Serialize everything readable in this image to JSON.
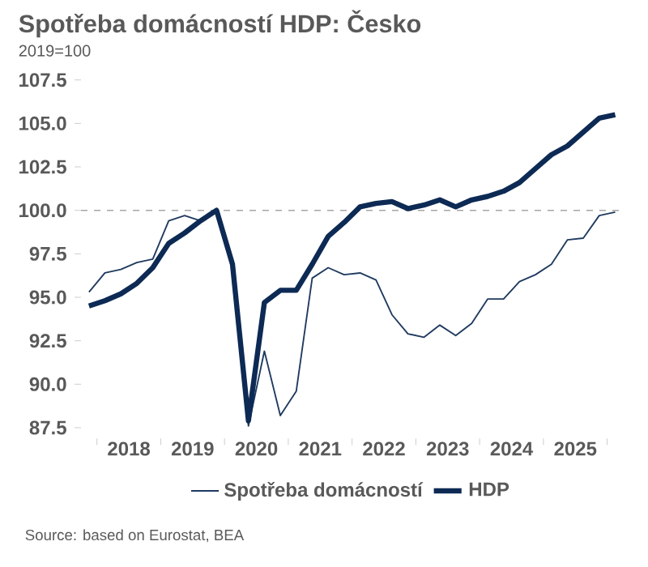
{
  "chart_data": {
    "type": "line",
    "title": "Spotřeba domácností HDP: Česko",
    "subtitle": "2019=100",
    "annotations": [
      "Source: based on Eurostat, BEA"
    ],
    "x": [
      2017.875,
      2018.125,
      2018.375,
      2018.625,
      2018.875,
      2019.125,
      2019.375,
      2019.625,
      2019.875,
      2020.125,
      2020.375,
      2020.625,
      2020.875,
      2021.125,
      2021.375,
      2021.625,
      2021.875,
      2022.125,
      2022.375,
      2022.625,
      2022.875,
      2023.125,
      2023.375,
      2023.625,
      2023.875,
      2024.125,
      2024.375,
      2024.625,
      2024.875,
      2025.125,
      2025.375,
      2025.625,
      2025.875,
      2026.125
    ],
    "series": [
      {
        "name": "Spotřeba domácností",
        "color": "#1f3a5f",
        "values": [
          95.3,
          96.4,
          96.6,
          97.0,
          97.2,
          99.4,
          99.7,
          99.4,
          100.0,
          97.0,
          87.6,
          91.9,
          88.2,
          89.6,
          96.1,
          96.7,
          96.3,
          96.4,
          96.0,
          94.0,
          92.9,
          92.7,
          93.4,
          92.8,
          93.5,
          94.9,
          94.9,
          95.9,
          96.3,
          96.9,
          98.3,
          98.4,
          99.7,
          99.9
        ]
      },
      {
        "name": "HDP",
        "color": "#0d2a54",
        "values": [
          94.5,
          94.8,
          95.2,
          95.8,
          96.7,
          98.1,
          98.7,
          99.4,
          100.0,
          96.9,
          87.9,
          94.7,
          95.4,
          95.4,
          96.9,
          98.5,
          99.3,
          100.2,
          100.4,
          100.5,
          100.1,
          100.3,
          100.6,
          100.2,
          100.6,
          100.8,
          101.1,
          101.6,
          102.4,
          103.2,
          103.7,
          104.5,
          105.3,
          105.5
        ]
      }
    ],
    "xlim": [
      2017.75,
      2026.25
    ],
    "xticks": [
      {
        "value": 2018,
        "label": null
      },
      {
        "value": 2018.5,
        "label": "2018"
      },
      {
        "value": 2019,
        "label": null
      },
      {
        "value": 2019.5,
        "label": "2019"
      },
      {
        "value": 2020,
        "label": null
      },
      {
        "value": 2020.5,
        "label": "2020"
      },
      {
        "value": 2021,
        "label": null
      },
      {
        "value": 2021.5,
        "label": "2021"
      },
      {
        "value": 2022,
        "label": null
      },
      {
        "value": 2022.5,
        "label": "2022"
      },
      {
        "value": 2023,
        "label": null
      },
      {
        "value": 2023.5,
        "label": "2023"
      },
      {
        "value": 2024,
        "label": null
      },
      {
        "value": 2024.5,
        "label": "2024"
      },
      {
        "value": 2025,
        "label": null
      },
      {
        "value": 2025.5,
        "label": "2025"
      },
      {
        "value": 2026,
        "label": null
      }
    ],
    "ylim": [
      87.5,
      107.5
    ],
    "yticks": [
      {
        "value": 87.5,
        "label": "87.5"
      },
      {
        "value": 90,
        "label": "90.0"
      },
      {
        "value": 92.5,
        "label": "92.5"
      },
      {
        "value": 95,
        "label": "95.0"
      },
      {
        "value": 97.5,
        "label": "97.5"
      },
      {
        "value": 100,
        "label": "100.0"
      },
      {
        "value": 102.5,
        "label": "102.5"
      },
      {
        "value": 105,
        "label": "105.0"
      },
      {
        "value": 107.5,
        "label": "107.5"
      }
    ],
    "ref_lines": [
      {
        "axis": "y",
        "value": 100,
        "color": "#a6a6a6",
        "line_style": "dashed"
      }
    ],
    "legend": "bottom"
  }
}
